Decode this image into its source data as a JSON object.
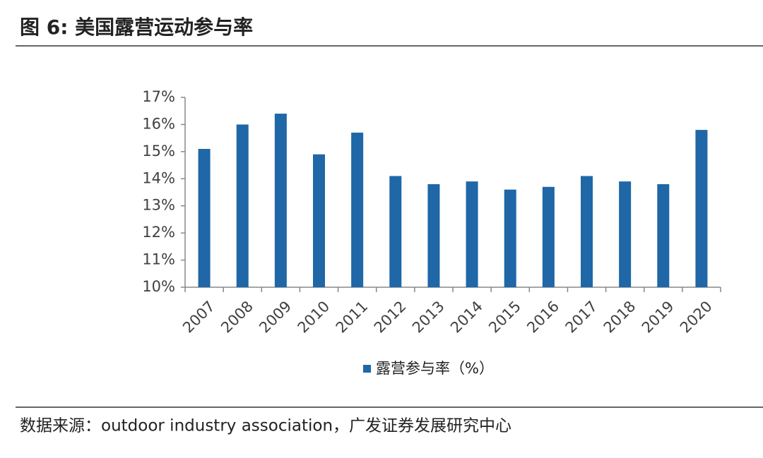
{
  "chart_data": {
    "type": "bar",
    "title": "图 6:  美国露营运动参与率",
    "source": "数据来源：outdoor industry association，广发证券发展研究中心",
    "categories": [
      "2007",
      "2008",
      "2009",
      "2010",
      "2011",
      "2012",
      "2013",
      "2014",
      "2015",
      "2016",
      "2017",
      "2018",
      "2019",
      "2020"
    ],
    "series": [
      {
        "name": "露营参与率（%）",
        "color": "#1f67a6",
        "values": [
          15.1,
          16.0,
          16.4,
          14.9,
          15.7,
          14.1,
          13.8,
          13.9,
          13.6,
          13.7,
          14.1,
          13.9,
          13.8,
          15.8
        ]
      }
    ],
    "ylim": [
      10,
      17
    ],
    "yticks": [
      {
        "value": 10,
        "label": "10%"
      },
      {
        "value": 11,
        "label": "11%"
      },
      {
        "value": 12,
        "label": "12%"
      },
      {
        "value": 13,
        "label": "13%"
      },
      {
        "value": 14,
        "label": "14%"
      },
      {
        "value": 15,
        "label": "15%"
      },
      {
        "value": 16,
        "label": "16%"
      },
      {
        "value": 17,
        "label": "17%"
      }
    ],
    "grid": false
  }
}
